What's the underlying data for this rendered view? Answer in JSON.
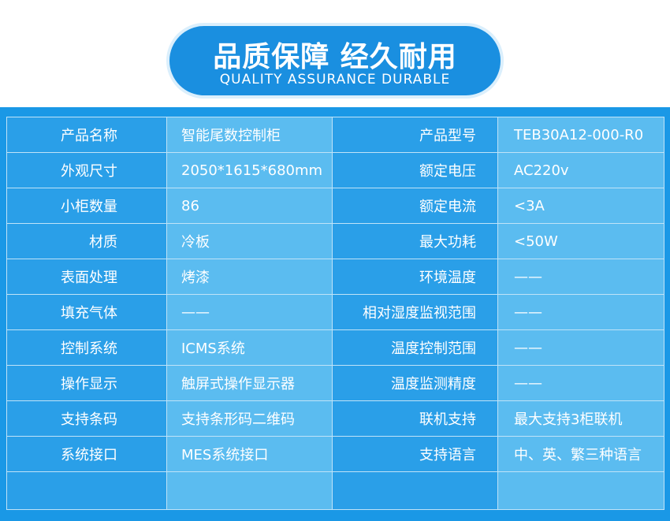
{
  "header": {
    "title": "品质保障 经久耐用",
    "subtitle": "QUALITY ASSURANCE DURABLE"
  },
  "table": {
    "rows": [
      [
        "产品名称",
        "智能尾数控制柜",
        "产品型号",
        "TEB30A12-000-R0"
      ],
      [
        "外观尺寸",
        "2050*1615*680mm",
        "额定电压",
        "AC220v"
      ],
      [
        "小柜数量",
        "86",
        "额定电流",
        "<3A"
      ],
      [
        "材质",
        "冷板",
        "最大功耗",
        "<50W"
      ],
      [
        "表面处理",
        "烤漆",
        "环境温度",
        "——"
      ],
      [
        "填充气体",
        "——",
        "相对湿度监视范围",
        "——"
      ],
      [
        "控制系统",
        "ICMS系统",
        "温度控制范围",
        "——"
      ],
      [
        "操作显示",
        "触屏式操作显示器",
        "温度监测精度",
        "——"
      ],
      [
        "支持条码",
        "支持条形码二维码",
        "联机支持",
        "最大支持3柜联机"
      ],
      [
        "系统接口",
        "MES系统接口",
        "支持语言",
        "中、英、繁三种语言"
      ]
    ]
  }
}
